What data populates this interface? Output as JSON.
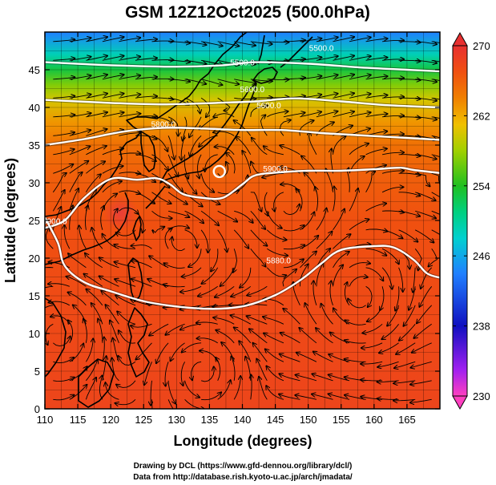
{
  "title": "GSM 12Z12Oct2025 (500.0hPa)",
  "xlabel": "Longitude (degrees)",
  "ylabel": "Latitude  (degrees)",
  "credits": {
    "line1": "Drawing by DCL (https://www.gfd-dennou.org/library/dcl/)",
    "line2": "Data from http://database.rish.kyoto-u.ac.jp/arch/jmadata/"
  },
  "chart_data": {
    "type": "heatmap",
    "variable": "temperature (K)",
    "x_range": [
      110,
      170
    ],
    "y_range": [
      0,
      50
    ],
    "x_ticks": [
      110,
      115,
      120,
      125,
      130,
      135,
      140,
      145,
      150,
      155,
      160,
      165
    ],
    "y_ticks": [
      0,
      5,
      10,
      15,
      20,
      25,
      30,
      35,
      40,
      45
    ],
    "colorbar": {
      "min": 230,
      "max": 270,
      "ticks": [
        230,
        238,
        246,
        254,
        262,
        270
      ],
      "stops": [
        {
          "v": 230,
          "color": "#ff40c0"
        },
        {
          "v": 233,
          "color": "#a020f0"
        },
        {
          "v": 238,
          "color": "#1010c0"
        },
        {
          "v": 244,
          "color": "#2080ff"
        },
        {
          "v": 248,
          "color": "#00d0d0"
        },
        {
          "v": 251,
          "color": "#00d080"
        },
        {
          "v": 254,
          "color": "#20c020"
        },
        {
          "v": 258,
          "color": "#a0d000"
        },
        {
          "v": 261,
          "color": "#f0c000"
        },
        {
          "v": 264,
          "color": "#f08000"
        },
        {
          "v": 267,
          "color": "#f05010"
        },
        {
          "v": 270,
          "color": "#e83030"
        }
      ]
    },
    "temperature_profile": [
      {
        "lat": 50,
        "t": 244
      },
      {
        "lat": 47,
        "t": 249
      },
      {
        "lat": 45,
        "t": 253
      },
      {
        "lat": 43,
        "t": 257
      },
      {
        "lat": 41,
        "t": 260
      },
      {
        "lat": 38,
        "t": 263
      },
      {
        "lat": 35,
        "t": 265
      },
      {
        "lat": 31,
        "t": 266
      },
      {
        "lat": 25,
        "t": 267
      },
      {
        "lat": 15,
        "t": 267.5
      },
      {
        "lat": 0,
        "t": 268
      }
    ],
    "height_contours": [
      {
        "label": "5500.0",
        "points": [
          [
            110,
            46
          ],
          [
            120,
            45.6
          ],
          [
            130,
            45.4
          ],
          [
            137,
            45.6
          ],
          [
            142,
            46
          ],
          [
            150,
            45.8
          ],
          [
            158,
            45.3
          ],
          [
            165,
            45
          ],
          [
            170,
            44.8
          ]
        ]
      },
      {
        "label": "5600.0",
        "points": [
          [
            110,
            41
          ],
          [
            120,
            40.6
          ],
          [
            128,
            40.4
          ],
          [
            136,
            40.6
          ],
          [
            142,
            40.8
          ],
          [
            148,
            41.2
          ],
          [
            155,
            40.8
          ],
          [
            162,
            40.3
          ],
          [
            170,
            40
          ]
        ]
      },
      {
        "label": "5800.0",
        "points": [
          [
            110,
            35
          ],
          [
            116,
            35.8
          ],
          [
            122,
            36.8
          ],
          [
            128,
            37.3
          ],
          [
            134,
            37.2
          ],
          [
            140,
            37
          ],
          [
            146,
            37
          ],
          [
            152,
            36.6
          ],
          [
            158,
            36.3
          ],
          [
            164,
            36
          ],
          [
            170,
            35.7
          ]
        ]
      },
      {
        "label": "5900.0",
        "points": [
          [
            110,
            24
          ],
          [
            113,
            25
          ],
          [
            116,
            28
          ],
          [
            120,
            30.5
          ],
          [
            124,
            30.4
          ],
          [
            127,
            30.6
          ],
          [
            129,
            29.8
          ],
          [
            131,
            28.5
          ],
          [
            134,
            28
          ],
          [
            137,
            28
          ],
          [
            140,
            29.8
          ],
          [
            142,
            31
          ],
          [
            146,
            31.4
          ],
          [
            150,
            31.6
          ],
          [
            155,
            31.6
          ],
          [
            160,
            31.8
          ],
          [
            164,
            32
          ],
          [
            166,
            31.7
          ],
          [
            170,
            31.3
          ]
        ]
      },
      {
        "label": "5880.0",
        "points": [
          [
            110,
            25.4
          ],
          [
            112,
            22
          ],
          [
            113,
            19
          ],
          [
            116,
            16.8
          ],
          [
            120,
            15.6
          ],
          [
            126,
            14.1
          ],
          [
            134,
            13.3
          ],
          [
            140,
            13.6
          ],
          [
            145,
            15.1
          ],
          [
            149,
            17.2
          ],
          [
            152,
            19.3
          ],
          [
            155,
            21.1
          ],
          [
            160,
            21.6
          ],
          [
            163,
            21.4
          ],
          [
            166,
            19.8
          ],
          [
            168,
            18
          ],
          [
            170,
            17.4
          ]
        ]
      }
    ],
    "contour_label_positions": [
      {
        "label": "5500.0",
        "lon": 152,
        "lat": 47.5
      },
      {
        "label": "5500.0",
        "lon": 140,
        "lat": 45.6
      },
      {
        "label": "5600.0",
        "lon": 141.5,
        "lat": 42
      },
      {
        "label": "5600.0",
        "lon": 144,
        "lat": 39.9
      },
      {
        "label": "5800.0",
        "lon": 128,
        "lat": 37.4
      },
      {
        "label": "5900.0",
        "lon": 145,
        "lat": 31.5
      },
      {
        "label": "5900.0",
        "lon": 111.5,
        "lat": 24.5
      },
      {
        "label": "5880.0",
        "lon": 145.5,
        "lat": 19.3
      }
    ],
    "features": [
      {
        "name": "warm-eddy",
        "lon": 121.5,
        "lat": 26,
        "dt": 2.5
      },
      {
        "name": "cold-eddy",
        "lon": 136.5,
        "lat": 31.5,
        "dt": -0.8
      }
    ],
    "vortices": [
      {
        "lon": 136.5,
        "lat": 31.5,
        "dir": 1
      },
      {
        "lon": 122,
        "lat": 25,
        "dir": -1
      },
      {
        "lon": 147,
        "lat": 27,
        "dir": 1
      },
      {
        "lon": 131,
        "lat": 22,
        "dir": -1
      },
      {
        "lon": 158,
        "lat": 15,
        "dir": -1
      },
      {
        "lon": 134,
        "lat": 5,
        "dir": 1
      },
      {
        "lon": 112,
        "lat": 10,
        "dir": 1
      }
    ]
  }
}
